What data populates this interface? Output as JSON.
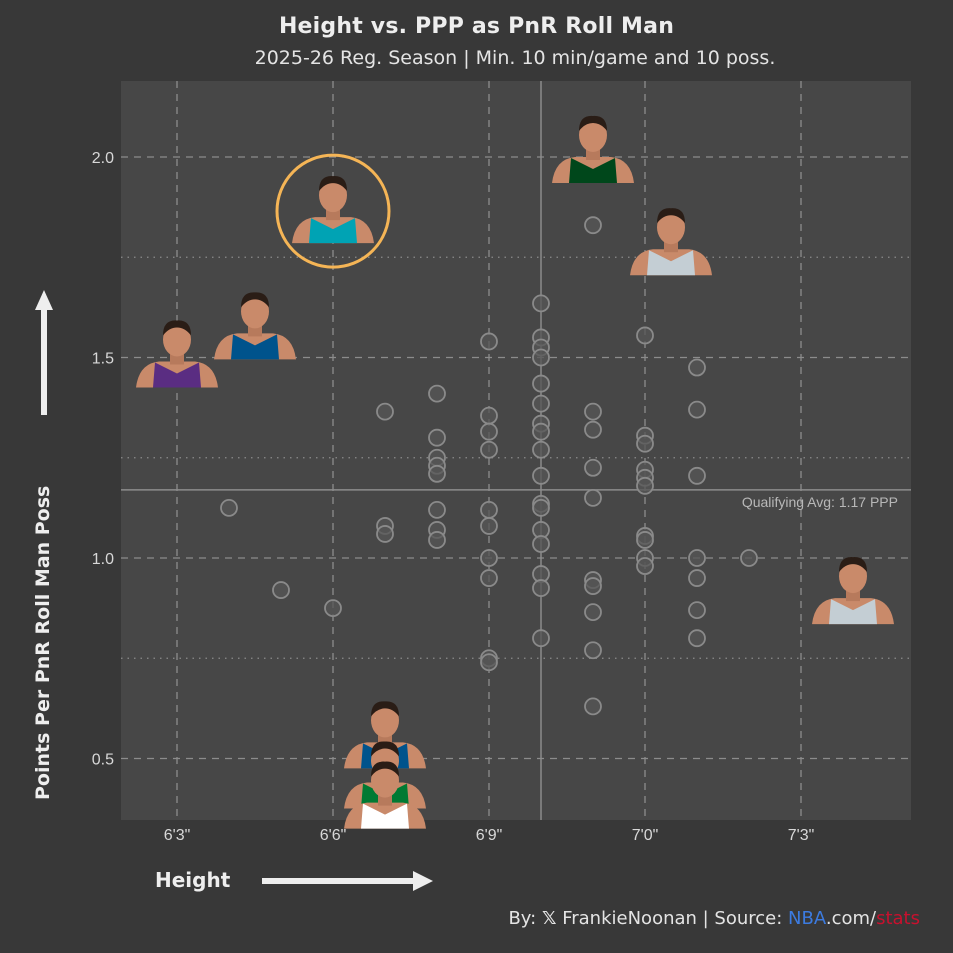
{
  "header": {
    "title": "Height vs. PPP as PnR Roll Man",
    "subtitle": "2025-26 Reg. Season | Min. 10 min/game and 10 poss."
  },
  "axes": {
    "ylabel": "Points Per PnR Roll Man Poss",
    "xlabel": "Height",
    "yticks": [
      "2.0",
      "1.5",
      "1.0",
      "0.5"
    ],
    "xticks": [
      "6'3\"",
      "6'6\"",
      "6'9\"",
      "7'0\"",
      "7'3\""
    ]
  },
  "annotation": {
    "avg_label": "Qualifying Avg: 1.17 PPP"
  },
  "footer": {
    "by": "By:",
    "x_icon": "𝕏",
    "handle": "FrankieNoonan",
    "separator": " | Source: ",
    "nba": "NBA",
    "dotcom": ".com/",
    "stats": "stats"
  },
  "colors": {
    "background": "#383838",
    "plot_bg": "#474747",
    "point_stroke": "#8a8a8a",
    "point_fill": "#555555",
    "highlight_ring": "#f5b556",
    "nba_blue": "#3c7be0",
    "stats_red": "#c8102e"
  },
  "chart_data": {
    "type": "scatter",
    "title": "Height vs. PPP as PnR Roll Man",
    "subtitle": "2025-26 Reg. Season | Min. 10 min/game and 10 poss.",
    "xlabel": "Height",
    "ylabel": "Points Per PnR Roll Man Poss",
    "x_unit": "inches",
    "xlim": [
      74.1,
      89.3
    ],
    "ylim": [
      0.35,
      2.18
    ],
    "xticks": [
      75,
      78,
      81,
      84,
      87
    ],
    "xtick_labels": [
      "6'3\"",
      "6'6\"",
      "6'9\"",
      "7'0\"",
      "7'3\""
    ],
    "yticks": [
      0.5,
      1.0,
      1.5,
      2.0
    ],
    "grid": true,
    "reference_lines": {
      "avg_ppp": 1.17,
      "avg_height_in": 82
    },
    "points": [
      {
        "x": 76,
        "y": 1.125
      },
      {
        "x": 77,
        "y": 0.92
      },
      {
        "x": 78,
        "y": 0.875
      },
      {
        "x": 79,
        "y": 1.365
      },
      {
        "x": 79,
        "y": 1.08
      },
      {
        "x": 79,
        "y": 1.06
      },
      {
        "x": 80,
        "y": 1.41
      },
      {
        "x": 80,
        "y": 1.3
      },
      {
        "x": 80,
        "y": 1.25
      },
      {
        "x": 80,
        "y": 1.23
      },
      {
        "x": 80,
        "y": 1.21
      },
      {
        "x": 80,
        "y": 1.12
      },
      {
        "x": 80,
        "y": 1.07
      },
      {
        "x": 80,
        "y": 1.045
      },
      {
        "x": 81,
        "y": 1.54
      },
      {
        "x": 81,
        "y": 1.355
      },
      {
        "x": 81,
        "y": 1.315
      },
      {
        "x": 81,
        "y": 1.27
      },
      {
        "x": 81,
        "y": 1.12
      },
      {
        "x": 81,
        "y": 1.08
      },
      {
        "x": 81,
        "y": 1.0
      },
      {
        "x": 81,
        "y": 0.95
      },
      {
        "x": 81,
        "y": 0.75
      },
      {
        "x": 81,
        "y": 0.74
      },
      {
        "x": 82,
        "y": 1.635
      },
      {
        "x": 82,
        "y": 1.55
      },
      {
        "x": 82,
        "y": 1.525
      },
      {
        "x": 82,
        "y": 1.5
      },
      {
        "x": 82,
        "y": 1.435
      },
      {
        "x": 82,
        "y": 1.385
      },
      {
        "x": 82,
        "y": 1.335
      },
      {
        "x": 82,
        "y": 1.315
      },
      {
        "x": 82,
        "y": 1.27
      },
      {
        "x": 82,
        "y": 1.205
      },
      {
        "x": 82,
        "y": 1.135
      },
      {
        "x": 82,
        "y": 1.125
      },
      {
        "x": 82,
        "y": 1.07
      },
      {
        "x": 82,
        "y": 1.035
      },
      {
        "x": 82,
        "y": 0.96
      },
      {
        "x": 82,
        "y": 0.925
      },
      {
        "x": 82,
        "y": 0.8
      },
      {
        "x": 83,
        "y": 1.83
      },
      {
        "x": 83,
        "y": 1.365
      },
      {
        "x": 83,
        "y": 1.32
      },
      {
        "x": 83,
        "y": 1.225
      },
      {
        "x": 83,
        "y": 1.15
      },
      {
        "x": 83,
        "y": 0.945
      },
      {
        "x": 83,
        "y": 0.93
      },
      {
        "x": 83,
        "y": 0.865
      },
      {
        "x": 83,
        "y": 0.77
      },
      {
        "x": 83,
        "y": 0.63
      },
      {
        "x": 84,
        "y": 1.555
      },
      {
        "x": 84,
        "y": 1.305
      },
      {
        "x": 84,
        "y": 1.285
      },
      {
        "x": 84,
        "y": 1.22
      },
      {
        "x": 84,
        "y": 1.2
      },
      {
        "x": 84,
        "y": 1.18
      },
      {
        "x": 84,
        "y": 1.055
      },
      {
        "x": 84,
        "y": 1.045
      },
      {
        "x": 84,
        "y": 1.0
      },
      {
        "x": 84,
        "y": 0.98
      },
      {
        "x": 85,
        "y": 1.475
      },
      {
        "x": 85,
        "y": 1.37
      },
      {
        "x": 85,
        "y": 1.205
      },
      {
        "x": 85,
        "y": 1.0
      },
      {
        "x": 85,
        "y": 0.95
      },
      {
        "x": 85,
        "y": 0.87
      },
      {
        "x": 85,
        "y": 0.8
      },
      {
        "x": 86,
        "y": 1.0
      }
    ],
    "headshots": [
      {
        "x": 75,
        "y": 1.52,
        "team_color": "#5a2d82",
        "highlight": false
      },
      {
        "x": 76.5,
        "y": 1.59,
        "team_color": "#00538c",
        "highlight": false
      },
      {
        "x": 78,
        "y": 1.88,
        "team_color": "#00a3b4",
        "highlight": true
      },
      {
        "x": 83,
        "y": 2.03,
        "team_color": "#00471b",
        "highlight": false
      },
      {
        "x": 84.5,
        "y": 1.8,
        "team_color": "#c4ced4",
        "highlight": false
      },
      {
        "x": 88,
        "y": 0.93,
        "team_color": "#c4ced4",
        "highlight": false
      },
      {
        "x": 79,
        "y": 0.57,
        "team_color": "#00538c",
        "highlight": false
      },
      {
        "x": 79,
        "y": 0.47,
        "team_color": "#007a33",
        "highlight": false
      },
      {
        "x": 79,
        "y": 0.42,
        "team_color": "#ffffff",
        "highlight": false
      }
    ]
  }
}
